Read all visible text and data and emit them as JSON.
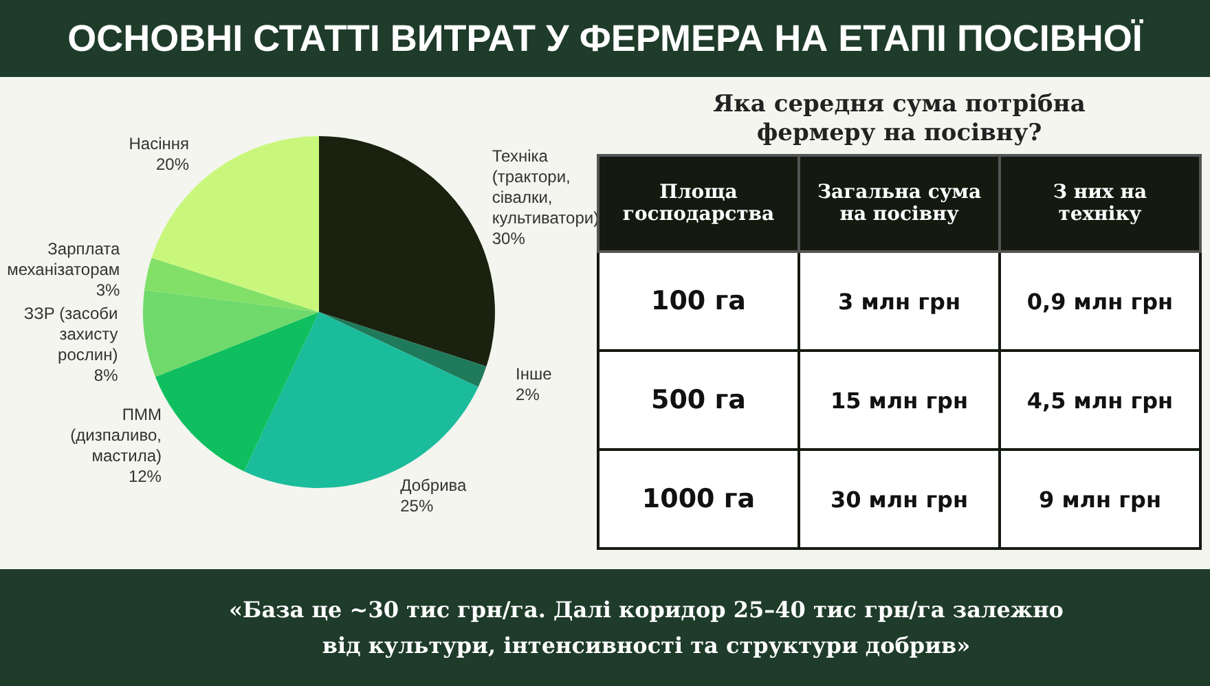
{
  "chart_data": [
    {
      "type": "pie",
      "title": "ОСНОВНІ СТАТТІ ВИТРАТ У ФЕРМЕРА НА ЕТАПІ ПОСІВНОЇ",
      "categories": [
        "Техніка (трактори, сівалки, культиватори)",
        "Інше",
        "Добрива",
        "ПММ (дизпаливо, мастила)",
        "ЗЗР (засоби захисту рослин)",
        "Зарплата механізаторам",
        "Насіння"
      ],
      "values": [
        30,
        2,
        25,
        12,
        8,
        3,
        20
      ],
      "colors": [
        "#1a220f",
        "#1f7a5c",
        "#1abc9c",
        "#0fbf5f",
        "#6fd96b",
        "#82e068",
        "#c9f77c"
      ],
      "value_labels": [
        "30%",
        "2%",
        "25%",
        "12%",
        "8%",
        "3%",
        "20%"
      ],
      "legend": false,
      "annotations": [
        "«База це ~30 тис грн/га. Далі коридор 25–40 тис грн/га залежно від культури, інтенсивності та структури добрив»"
      ]
    },
    {
      "type": "other",
      "title": "Яка середня сума потрібна фермеру на посівну?",
      "annotations": [
        "Площа господарства",
        "Загальна сума на посівну",
        "З них на техніку",
        "100 га",
        "3 млн грн",
        "0,9 млн грн",
        "500 га",
        "15 млн грн",
        "4,5 млн грн",
        "1000 га",
        "30 млн грн",
        "9 млн грн"
      ]
    }
  ]
}
